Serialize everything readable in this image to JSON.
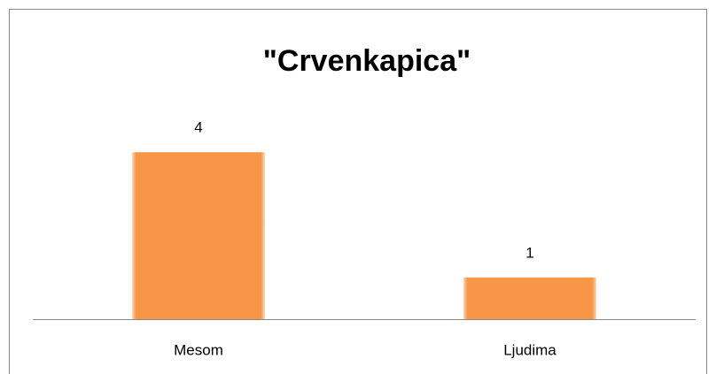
{
  "chart_data": {
    "type": "bar",
    "title": "\"Crvenkapica\"",
    "categories": [
      "Mesom",
      "Ljudima"
    ],
    "values": [
      4,
      1
    ],
    "color": "#f79646",
    "ylim": [
      0,
      5
    ]
  }
}
